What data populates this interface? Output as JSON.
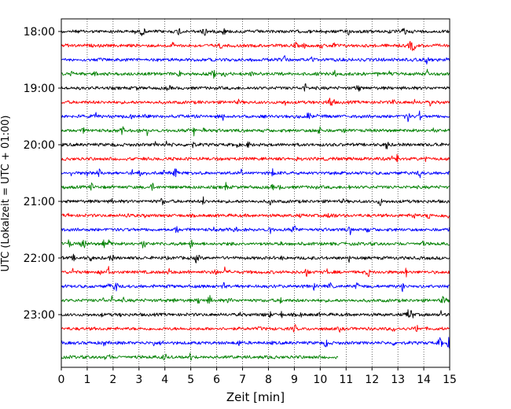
{
  "chart_data": {
    "type": "line",
    "title": "",
    "xlabel": "Zeit  [min]",
    "ylabel": "UTC (Lokalzeit = UTC + 01:00)",
    "xlim": [
      0,
      15
    ],
    "x_ticks": [
      "0",
      "1",
      "2",
      "3",
      "4",
      "5",
      "6",
      "7",
      "8",
      "9",
      "10",
      "11",
      "12",
      "13",
      "14",
      "15"
    ],
    "y_ticks": [
      "18:00",
      "19:00",
      "20:00",
      "21:00",
      "22:00",
      "23:00"
    ],
    "grid": "vertical dotted",
    "trace_interval_minutes": 15,
    "trace_colors": [
      "#000000",
      "#ff0000",
      "#0000ff",
      "#008000"
    ],
    "series": [
      {
        "start": "18:00",
        "end_minute": 15
      },
      {
        "start": "18:15",
        "end_minute": 15
      },
      {
        "start": "18:30",
        "end_minute": 15
      },
      {
        "start": "18:45",
        "end_minute": 15
      },
      {
        "start": "19:00",
        "end_minute": 15
      },
      {
        "start": "19:15",
        "end_minute": 15
      },
      {
        "start": "19:30",
        "end_minute": 15
      },
      {
        "start": "19:45",
        "end_minute": 15
      },
      {
        "start": "20:00",
        "end_minute": 15
      },
      {
        "start": "20:15",
        "end_minute": 15
      },
      {
        "start": "20:30",
        "end_minute": 15
      },
      {
        "start": "20:45",
        "end_minute": 15
      },
      {
        "start": "21:00",
        "end_minute": 15
      },
      {
        "start": "21:15",
        "end_minute": 15
      },
      {
        "start": "21:30",
        "end_minute": 15
      },
      {
        "start": "21:45",
        "end_minute": 15
      },
      {
        "start": "22:00",
        "end_minute": 15
      },
      {
        "start": "22:15",
        "end_minute": 15
      },
      {
        "start": "22:30",
        "end_minute": 15
      },
      {
        "start": "22:45",
        "end_minute": 15
      },
      {
        "start": "23:00",
        "end_minute": 15
      },
      {
        "start": "23:15",
        "end_minute": 15
      },
      {
        "start": "23:30",
        "end_minute": 15
      },
      {
        "start": "23:45",
        "end_minute": 10.7
      }
    ]
  }
}
